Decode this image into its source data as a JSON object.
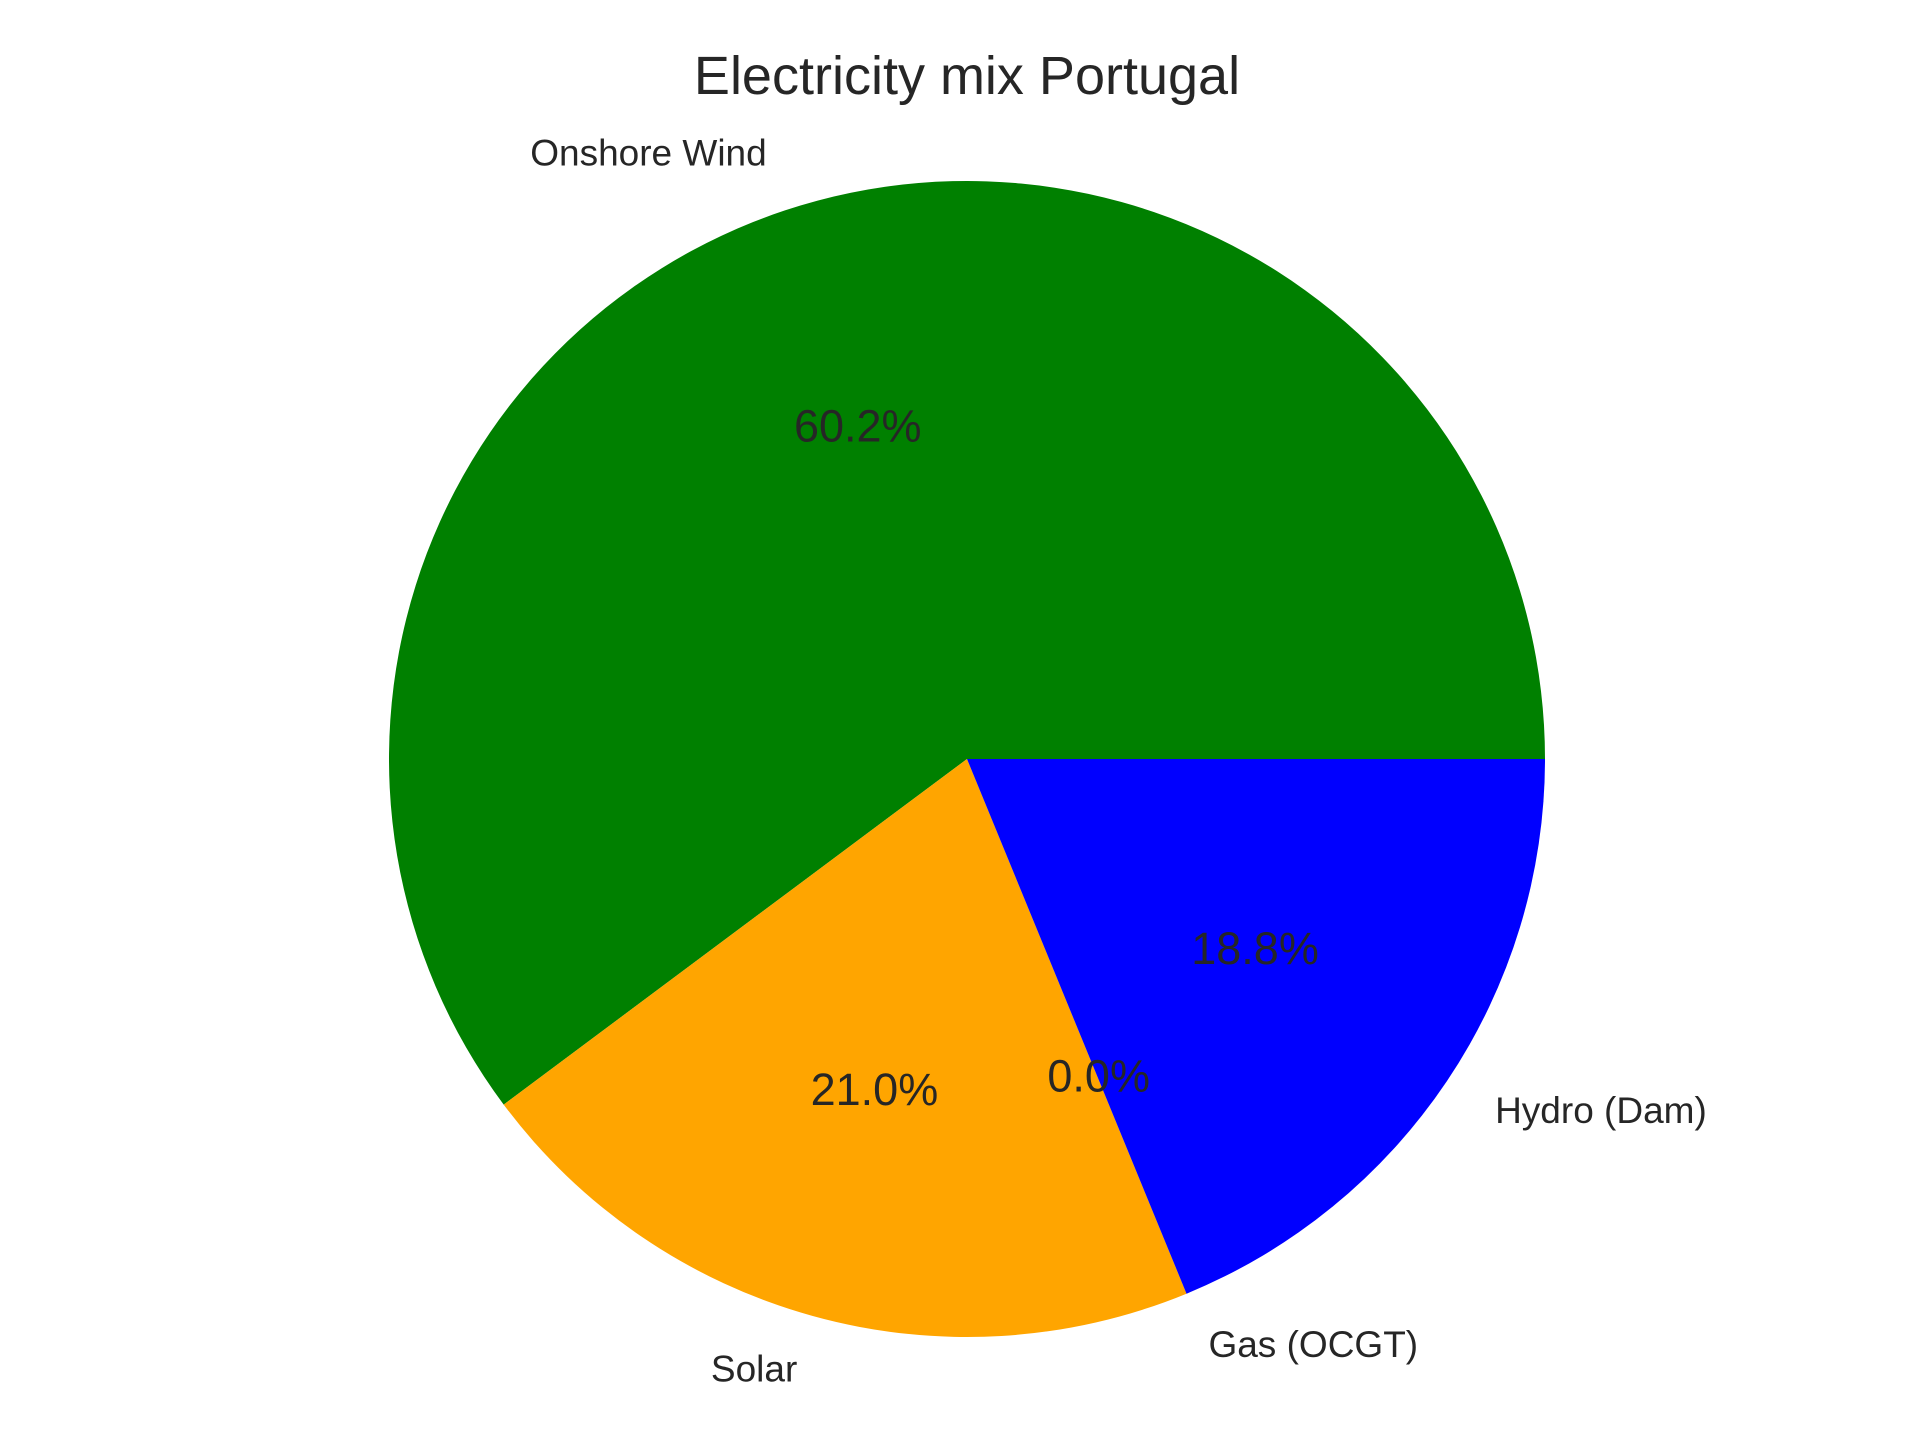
{
  "chart_data": {
    "type": "pie",
    "title": "Electricity mix Portugal",
    "start_angle_deg": 0,
    "direction": "counterclockwise",
    "slices": [
      {
        "label": "Onshore Wind",
        "value": 60.2,
        "pct_label": "60.2%",
        "color": "#008000"
      },
      {
        "label": "Solar",
        "value": 21.0,
        "pct_label": "21.0%",
        "color": "#FFA500"
      },
      {
        "label": "Gas (OCGT)",
        "value": 0.0,
        "pct_label": "0.0%",
        "color": "#FF0000"
      },
      {
        "label": "Hydro (Dam)",
        "value": 18.8,
        "pct_label": "18.8%",
        "color": "#0000FF"
      }
    ]
  }
}
